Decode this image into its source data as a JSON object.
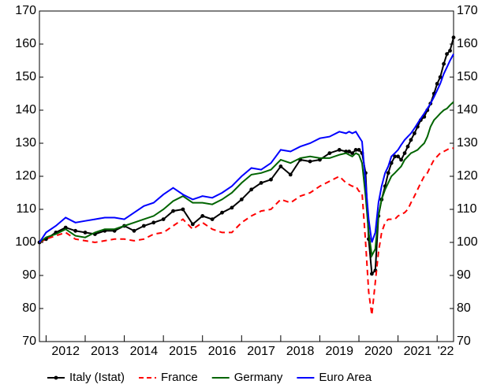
{
  "chart_data": {
    "type": "line",
    "x": [
      2011.83,
      2012.0,
      2012.25,
      2012.5,
      2012.75,
      2013.0,
      2013.25,
      2013.5,
      2013.75,
      2014.0,
      2014.25,
      2014.5,
      2014.75,
      2015.0,
      2015.25,
      2015.5,
      2015.75,
      2016.0,
      2016.25,
      2016.5,
      2016.75,
      2017.0,
      2017.25,
      2017.5,
      2017.75,
      2018.0,
      2018.25,
      2018.5,
      2018.75,
      2019.0,
      2019.25,
      2019.5,
      2019.67,
      2019.75,
      2019.83,
      2019.92,
      2020.0,
      2020.08,
      2020.17,
      2020.25,
      2020.33,
      2020.42,
      2020.5,
      2020.58,
      2020.67,
      2020.75,
      2020.83,
      2020.92,
      2021.0,
      2021.08,
      2021.17,
      2021.25,
      2021.33,
      2021.42,
      2021.5,
      2021.58,
      2021.67,
      2021.75,
      2021.83,
      2021.92,
      2022.0,
      2022.08,
      2022.17,
      2022.25,
      2022.33,
      2022.42
    ],
    "series": [
      {
        "name": "Italy (Istat)",
        "color": "#000000",
        "linestyle": "solid",
        "markers": true,
        "values": [
          100,
          101,
          103,
          104.5,
          103.5,
          103,
          102.5,
          103.5,
          103.5,
          105,
          103.5,
          105,
          106,
          107,
          109.5,
          110,
          105.5,
          108,
          107,
          109,
          110.5,
          113,
          116,
          118,
          119,
          123,
          120.5,
          125,
          124.5,
          125,
          127,
          128,
          127.5,
          127.5,
          127,
          128,
          128,
          127,
          121,
          101,
          90.5,
          91.5,
          108,
          113,
          117,
          121,
          124,
          126,
          126,
          125,
          127,
          129,
          131,
          133,
          135,
          137,
          138,
          140,
          142,
          145,
          148,
          150,
          154,
          157,
          158,
          162
        ]
      },
      {
        "name": "France",
        "color": "#ff0000",
        "linestyle": "dashed",
        "markers": false,
        "values": [
          100,
          101,
          102,
          103,
          101,
          100.5,
          100,
          100.5,
          101,
          101,
          100.5,
          101,
          102.5,
          103,
          105,
          107,
          104,
          106,
          104,
          103,
          103,
          106,
          108,
          109.5,
          110,
          113,
          112,
          114,
          115,
          117,
          118.5,
          120,
          118,
          117.5,
          117,
          117,
          115.5,
          115,
          100,
          85,
          78,
          88,
          97,
          103,
          106,
          107,
          107,
          107,
          108,
          108.5,
          109,
          110,
          112,
          114,
          116,
          118,
          120,
          121,
          123,
          125,
          126,
          127,
          127.5,
          128,
          128.5,
          128.5
        ]
      },
      {
        "name": "Germany",
        "color": "#006400",
        "linestyle": "solid",
        "markers": false,
        "values": [
          100,
          101.5,
          102.5,
          104,
          102,
          101.5,
          103,
          104,
          104,
          105,
          106,
          107,
          108,
          110,
          112.5,
          114,
          112,
          112,
          111.5,
          113,
          115,
          118,
          120.5,
          121,
          122,
          125,
          124,
          125.5,
          126,
          125.5,
          125.5,
          126.5,
          127,
          126.5,
          126,
          127,
          126.5,
          124,
          114,
          103,
          96,
          98,
          108,
          113,
          116,
          118,
          120,
          121,
          122,
          123,
          125,
          126,
          127,
          127.5,
          128,
          129,
          130,
          132,
          135,
          137,
          138,
          139,
          140,
          140.5,
          141.5,
          142.5
        ]
      },
      {
        "name": "Euro Area",
        "color": "#0000ff",
        "linestyle": "solid",
        "markers": false,
        "values": [
          100,
          103,
          105,
          107.5,
          106,
          106.5,
          107,
          107.5,
          107.5,
          107,
          109,
          111,
          112,
          114.5,
          116.5,
          114.5,
          113,
          114,
          113.5,
          115,
          117,
          120,
          122.5,
          122,
          124,
          128,
          127.5,
          129,
          130,
          131.5,
          132,
          133.5,
          133,
          133.5,
          133,
          133.5,
          132,
          130.5,
          118,
          107,
          100,
          103,
          112,
          117,
          121,
          123,
          126,
          127,
          128,
          129.5,
          131,
          132,
          133,
          134.5,
          136,
          137.5,
          139,
          140.5,
          142,
          144,
          146,
          148,
          151,
          153,
          155,
          157
        ]
      }
    ],
    "xlim": [
      2011.83,
      2022.42
    ],
    "xticks": [
      2012,
      2013,
      2014,
      2015,
      2016,
      2017,
      2018,
      2019,
      2020,
      2021,
      {
        "value": 2022,
        "label": "'22"
      }
    ],
    "ylim": [
      70,
      170
    ],
    "yticks": [
      70,
      80,
      90,
      100,
      110,
      120,
      130,
      140,
      150,
      160,
      170
    ],
    "y2lim": [
      70,
      170
    ],
    "y2ticks": [
      70,
      80,
      90,
      100,
      110,
      120,
      130,
      140,
      150,
      160,
      170
    ],
    "legend": "bottom"
  }
}
